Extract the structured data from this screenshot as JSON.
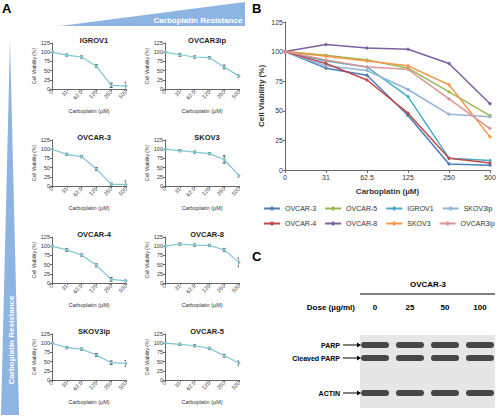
{
  "panel_labels": [
    "A",
    "B",
    "C"
  ],
  "resistance_label": "Carboplatin Resistance",
  "chart_data": [
    {
      "type": "line",
      "title": "IGROV1",
      "categories": [
        "0",
        "31",
        "62.5",
        "125",
        "250",
        "500"
      ],
      "values": [
        100,
        92,
        87,
        62,
        10,
        8
      ],
      "errors": [
        2,
        3,
        3,
        4,
        6,
        10
      ],
      "color": "#7fc4d4",
      "marker": "circle",
      "xlabel": "Carboplatin (µM)",
      "ylabel": "Cell Viability (%)",
      "ylim": [
        0,
        125
      ],
      "yticks": [
        0,
        25,
        50,
        75,
        100,
        125
      ],
      "grid": false
    },
    {
      "type": "line",
      "title": "OVCAR3ip",
      "categories": [
        "0",
        "31",
        "62.5",
        "125",
        "250",
        "500"
      ],
      "values": [
        100,
        93,
        87,
        85,
        60,
        35
      ],
      "errors": [
        2,
        4,
        3,
        3,
        5,
        4
      ],
      "color": "#7fc4d4",
      "marker": "circle",
      "xlabel": "Carboplatin (µM)",
      "ylabel": "Cell Viability (%)",
      "ylim": [
        0,
        125
      ],
      "yticks": [
        0,
        25,
        50,
        75,
        100,
        125
      ],
      "grid": false
    },
    {
      "type": "line",
      "title": "OVCAR-3",
      "categories": [
        "0",
        "31",
        "62.5",
        "125",
        "250",
        "500"
      ],
      "values": [
        100,
        86,
        80,
        46,
        5,
        4
      ],
      "errors": [
        2,
        3,
        3,
        4,
        3,
        10
      ],
      "color": "#7fc4d4",
      "marker": "circle",
      "xlabel": "Carboplatin (µM)",
      "ylabel": "Cell Viability (%)",
      "ylim": [
        0,
        125
      ],
      "yticks": [
        0,
        25,
        50,
        75,
        100,
        125
      ],
      "grid": false
    },
    {
      "type": "line",
      "title": "SKOV3",
      "categories": [
        "0",
        "31",
        "62.5",
        "125",
        "250",
        "500"
      ],
      "values": [
        100,
        96,
        92,
        88,
        72,
        28
      ],
      "errors": [
        2,
        3,
        3,
        3,
        10,
        4
      ],
      "color": "#7fc4d4",
      "marker": "circle",
      "xlabel": "Carboplatin (µM)",
      "ylabel": "Cell Viability (%)",
      "ylim": [
        0,
        125
      ],
      "yticks": [
        0,
        25,
        50,
        75,
        100,
        125
      ],
      "grid": false
    },
    {
      "type": "line",
      "title": "OVCAR-4",
      "categories": [
        "0",
        "31",
        "62.5",
        "125",
        "250",
        "500"
      ],
      "values": [
        100,
        90,
        76,
        48,
        10,
        6
      ],
      "errors": [
        2,
        4,
        3,
        4,
        5,
        3
      ],
      "color": "#7fc4d4",
      "marker": "circle",
      "xlabel": "Carboplatin (µM)",
      "ylabel": "Cell Viability (%)",
      "ylim": [
        0,
        125
      ],
      "yticks": [
        0,
        25,
        50,
        75,
        100,
        125
      ],
      "grid": false
    },
    {
      "type": "line",
      "title": "OVCAR-8",
      "categories": [
        "0",
        "31",
        "62.5",
        "125",
        "250",
        "500"
      ],
      "values": [
        100,
        106,
        103,
        102,
        90,
        56
      ],
      "errors": [
        2,
        3,
        3,
        3,
        4,
        12
      ],
      "color": "#7fc4d4",
      "marker": "circle",
      "xlabel": "Carboplatin (µM)",
      "ylabel": "Cell Viability (%)",
      "ylim": [
        0,
        125
      ],
      "yticks": [
        0,
        25,
        50,
        75,
        100,
        125
      ],
      "grid": false
    },
    {
      "type": "line",
      "title": "SKOV3ip",
      "categories": [
        "0",
        "31",
        "62.5",
        "125",
        "250",
        "500"
      ],
      "values": [
        100,
        88,
        84,
        68,
        47,
        45
      ],
      "errors": [
        2,
        3,
        3,
        4,
        5,
        8
      ],
      "color": "#7fc4d4",
      "marker": "circle",
      "xlabel": "Carboplatin (µM)",
      "ylabel": "Cell Viability (%)",
      "ylim": [
        0,
        125
      ],
      "yticks": [
        0,
        25,
        50,
        75,
        100,
        125
      ],
      "grid": false
    },
    {
      "type": "line",
      "title": "OVCAR-5",
      "categories": [
        "0",
        "31",
        "62.5",
        "125",
        "250",
        "500"
      ],
      "values": [
        100,
        97,
        93,
        86,
        66,
        46
      ],
      "errors": [
        2,
        3,
        3,
        3,
        4,
        6
      ],
      "color": "#7fc4d4",
      "marker": "circle",
      "xlabel": "Carboplatin (µM)",
      "ylabel": "Cell Viability (%)",
      "ylim": [
        0,
        125
      ],
      "yticks": [
        0,
        25,
        50,
        75,
        100,
        125
      ],
      "grid": false
    },
    {
      "type": "line",
      "categories": [
        "0",
        "31",
        "62.5",
        "125",
        "250",
        "500"
      ],
      "xlabel": "Carboplatin (µM)",
      "ylabel": "Cell Viability (%)",
      "ylim": [
        0,
        125
      ],
      "yticks": [
        0,
        25,
        50,
        75,
        100,
        125
      ],
      "grid": false,
      "legend": "bottom",
      "marker": "diamond",
      "series": [
        {
          "name": "OVCAR-3",
          "color": "#4a7ebb",
          "values": [
            100,
            86,
            80,
            46,
            5,
            4
          ]
        },
        {
          "name": "OVCAR-5",
          "color": "#98b954",
          "values": [
            100,
            97,
            93,
            86,
            66,
            46
          ]
        },
        {
          "name": "IGROV1",
          "color": "#4bacc6",
          "values": [
            100,
            92,
            87,
            62,
            10,
            8
          ]
        },
        {
          "name": "SKOV3ip",
          "color": "#93b3d7",
          "values": [
            100,
            88,
            84,
            68,
            47,
            45
          ]
        },
        {
          "name": "OVCAR-4",
          "color": "#be4b48",
          "values": [
            100,
            90,
            76,
            48,
            10,
            6
          ]
        },
        {
          "name": "OVCAR-8",
          "color": "#7d60a0",
          "values": [
            100,
            106,
            103,
            102,
            90,
            56
          ]
        },
        {
          "name": "SKOV3",
          "color": "#f79646",
          "values": [
            100,
            96,
            92,
            88,
            72,
            28
          ]
        },
        {
          "name": "OVCAR3ip",
          "color": "#d99694",
          "values": [
            100,
            93,
            87,
            85,
            60,
            35
          ]
        }
      ]
    }
  ],
  "blot": {
    "title": "OVCAR-3",
    "dose_label": "Dose (µg/ml)",
    "doses": [
      0,
      25,
      50,
      100
    ],
    "bands": [
      "PARP",
      "Cleaved PARP",
      "ACTIN"
    ]
  }
}
